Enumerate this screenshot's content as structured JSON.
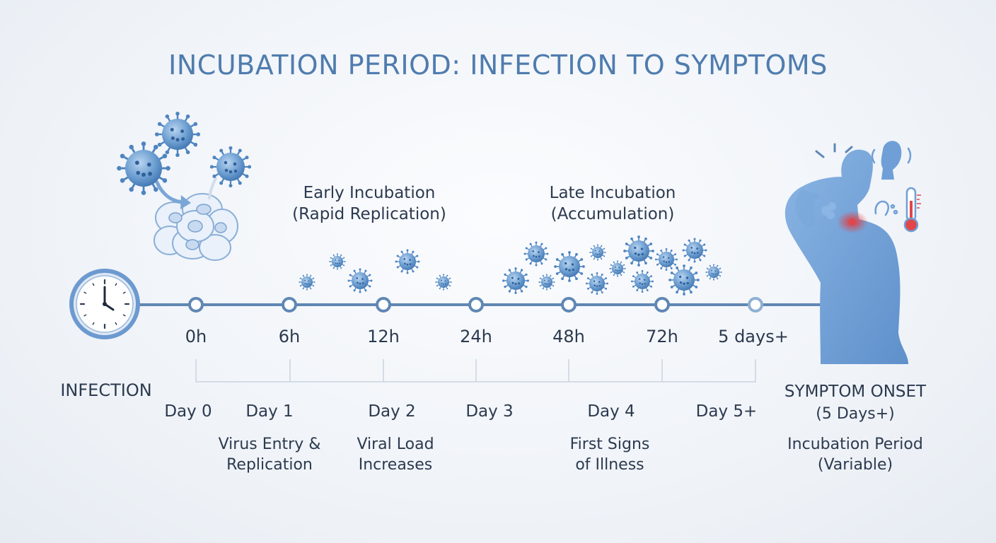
{
  "title": "INCUBATION PERIOD: INFECTION TO SYMPTOMS",
  "phases": [
    {
      "line1": "Early Incubation",
      "line2": "(Rapid Replication)"
    },
    {
      "line1": "Late Incubation",
      "line2": "(Accumulation)"
    }
  ],
  "time_ticks": [
    "0h",
    "6h",
    "12h",
    "24h",
    "48h",
    "72h",
    "5 days+"
  ],
  "days": [
    "Day 0",
    "Day 1",
    "Day 2",
    "Day 3",
    "Day 4",
    "Day 5+"
  ],
  "descriptions": [
    {
      "line1": "Virus Entry &",
      "line2": "Replication"
    },
    {
      "line1": "Viral Load",
      "line2": "Increases"
    },
    {
      "line1": "First Signs",
      "line2": "of Illness"
    }
  ],
  "left_label": "INFECTION",
  "right": {
    "onset": "SYMPTOM ONSET",
    "onset_sub": "(5 Days+)",
    "period": "Incubation Period",
    "period_sub": "(Variable)"
  },
  "colors": {
    "accent": "#4f7cae",
    "line": "#5f87b4",
    "virus": "#5b8fc7",
    "body": "#6f9fd6",
    "alert": "#e0464a"
  },
  "icons": [
    "clock-icon",
    "virus-icon",
    "cell-cluster-icon",
    "person-silhouette-icon",
    "head-icon",
    "cough-icon",
    "thermometer-icon"
  ]
}
